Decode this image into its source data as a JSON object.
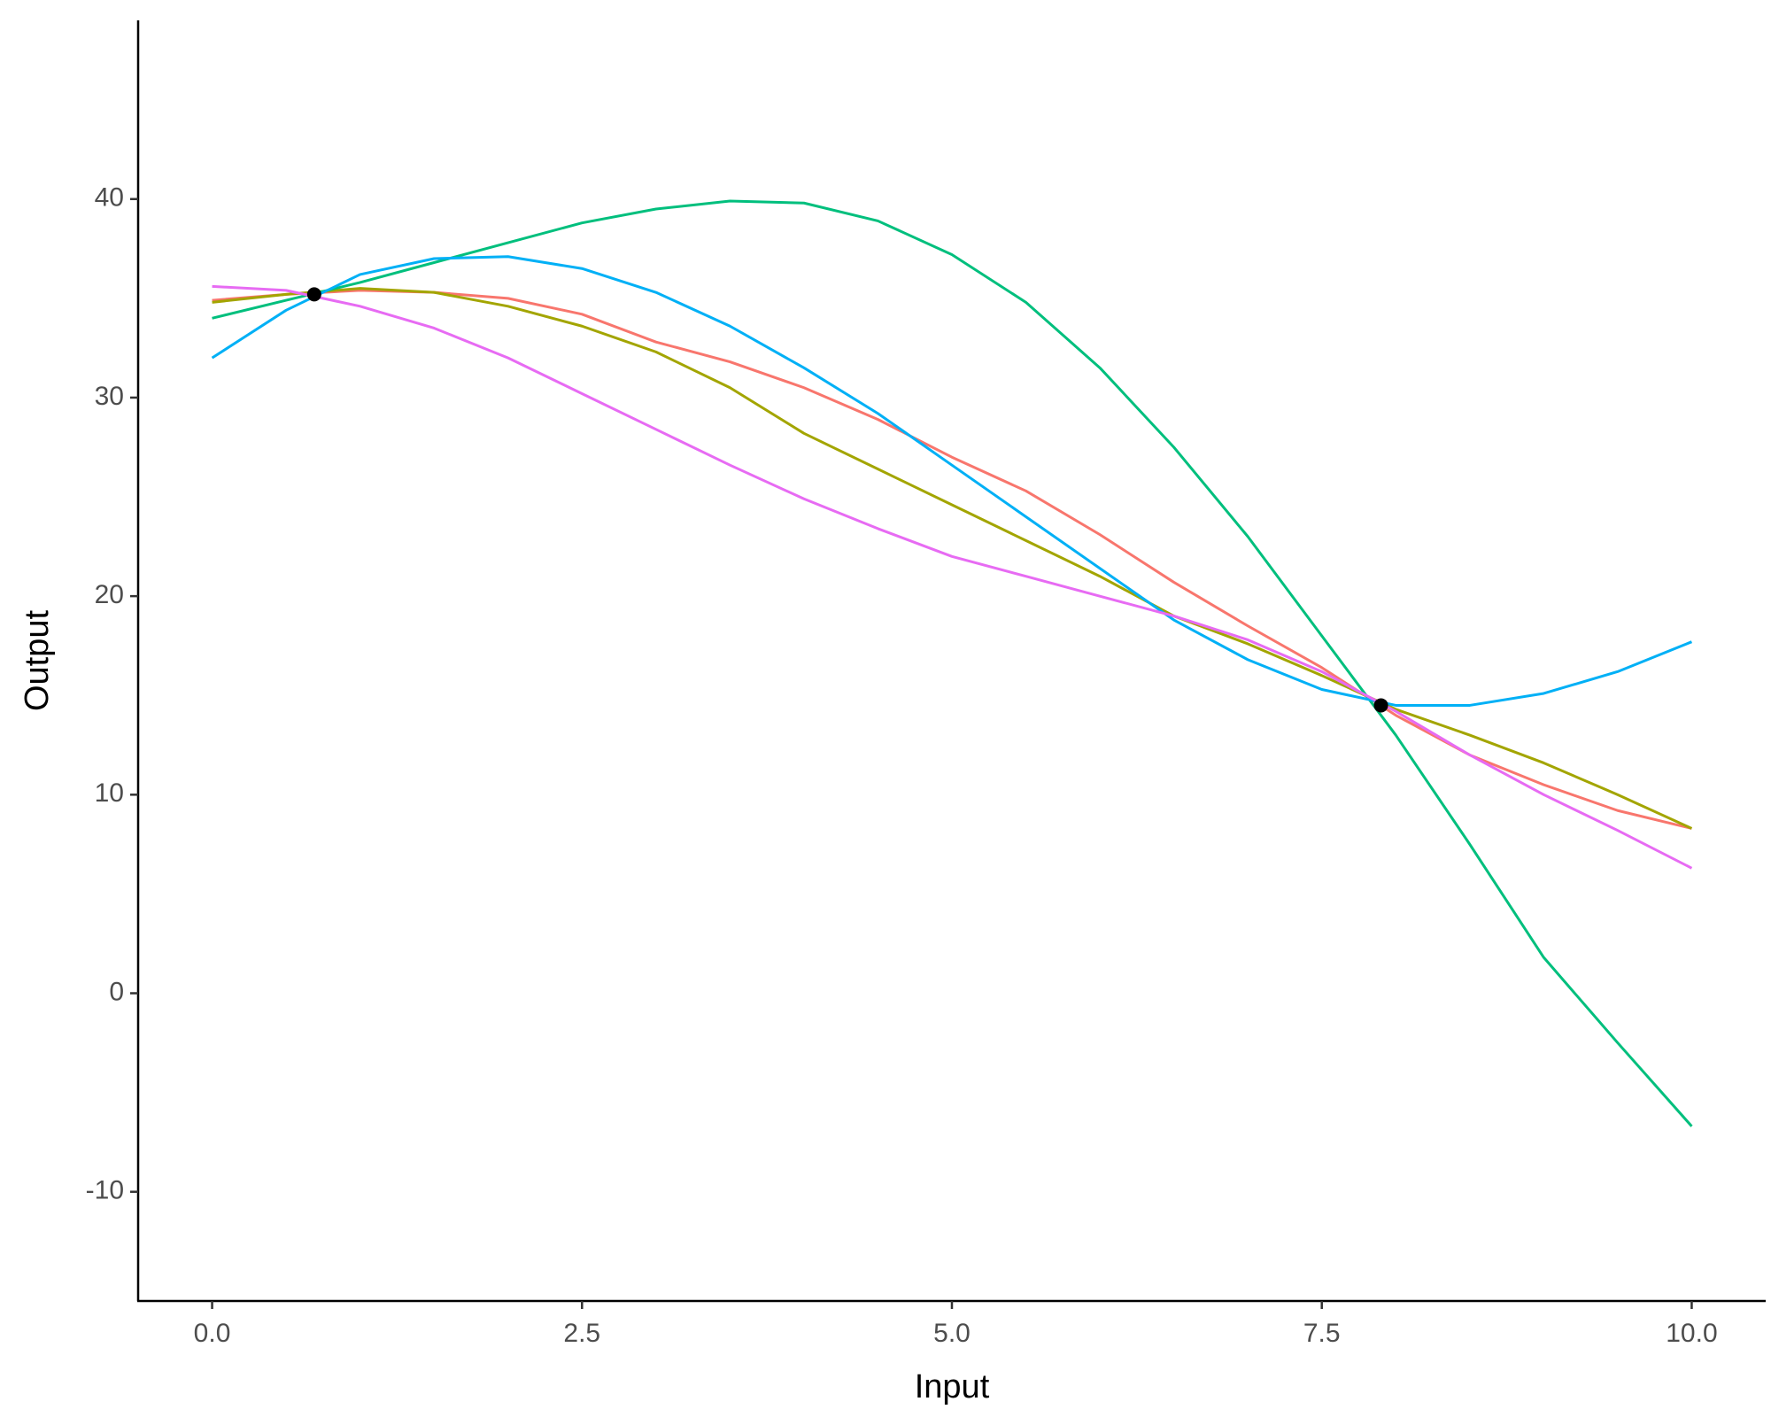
{
  "chart_data": {
    "type": "line",
    "xlabel": "Input",
    "ylabel": "Output",
    "x": [
      0,
      0.5,
      1,
      1.5,
      2,
      2.5,
      3,
      3.5,
      4,
      4.5,
      5,
      5.5,
      6,
      6.5,
      7,
      7.5,
      8,
      8.5,
      9,
      9.5,
      10
    ],
    "series": [
      {
        "color": "#F8766D",
        "values": [
          34.9,
          35.2,
          35.4,
          35.3,
          35.0,
          34.2,
          32.8,
          31.8,
          30.5,
          28.9,
          27.0,
          25.3,
          23.1,
          20.7,
          18.5,
          16.4,
          14.0,
          12.0,
          10.5,
          9.2,
          8.3
        ]
      },
      {
        "color": "#A3A500",
        "values": [
          34.8,
          35.2,
          35.5,
          35.3,
          34.6,
          33.6,
          32.3,
          30.5,
          28.2,
          26.4,
          24.6,
          22.8,
          21.0,
          19.0,
          17.6,
          16.0,
          14.3,
          13.0,
          11.6,
          10.0,
          8.3
        ]
      },
      {
        "color": "#00BF7D",
        "values": [
          34.0,
          34.9,
          35.8,
          36.8,
          37.8,
          38.8,
          39.5,
          39.9,
          39.8,
          38.9,
          37.2,
          34.8,
          31.5,
          27.5,
          23.0,
          18.0,
          13.0,
          7.5,
          1.8,
          -2.5,
          -6.7
        ]
      },
      {
        "color": "#00B0F6",
        "values": [
          32.0,
          34.4,
          36.2,
          37.0,
          37.1,
          36.5,
          35.3,
          33.6,
          31.5,
          29.2,
          26.6,
          24.0,
          21.4,
          18.8,
          16.8,
          15.3,
          14.5,
          14.5,
          15.1,
          16.2,
          17.7
        ]
      },
      {
        "color": "#E76BF3",
        "values": [
          35.6,
          35.4,
          34.6,
          33.5,
          32.0,
          30.2,
          28.4,
          26.6,
          24.9,
          23.4,
          22.0,
          21.0,
          20.0,
          19.0,
          17.8,
          16.2,
          14.2,
          12.0,
          10.0,
          8.2,
          6.3
        ]
      }
    ],
    "points": {
      "color": "#000000",
      "x": [
        0.69,
        7.9
      ],
      "y": [
        35.2,
        14.5
      ]
    },
    "xlim": [
      -0.5,
      10.5
    ],
    "xticks": [
      {
        "value": 0,
        "label": "0.0"
      },
      2.5,
      {
        "value": 5,
        "label": "5.0"
      },
      7.5,
      {
        "value": 10,
        "label": "10.0"
      }
    ],
    "ylim": [
      -15.5,
      49.0
    ],
    "yticks": [
      -10,
      0,
      10,
      20,
      30,
      40
    ],
    "grid": false
  }
}
